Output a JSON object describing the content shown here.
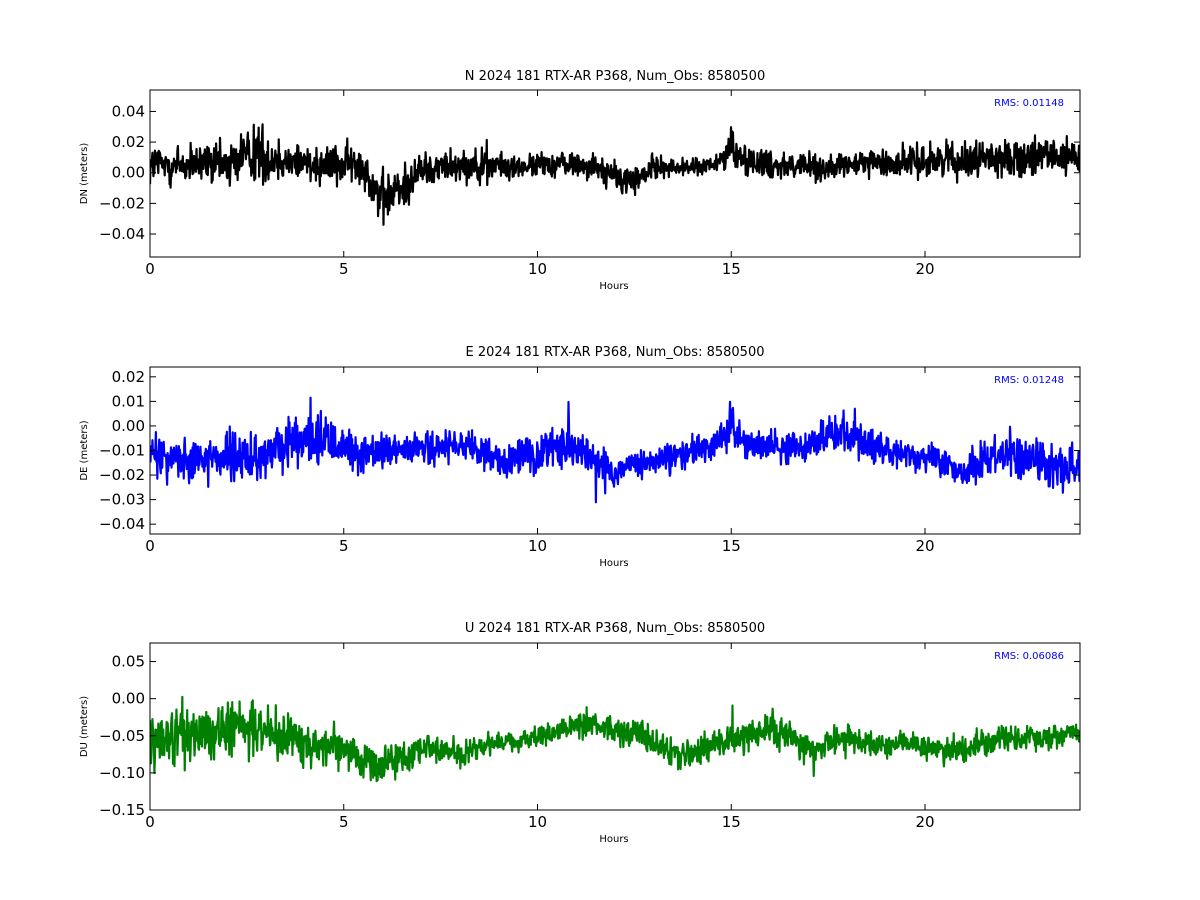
{
  "chart_data": [
    {
      "type": "line",
      "component": "N",
      "title": "N 2024 181 RTX-AR  P368, Num_Obs: 8580500",
      "xlabel": "Hours",
      "ylabel": "DN (meters)",
      "xlim": [
        0,
        24
      ],
      "ylim": [
        -0.055,
        0.054
      ],
      "xticks": [
        0,
        5,
        10,
        15,
        20
      ],
      "yticks": [
        0.04,
        0.02,
        0.0,
        -0.02,
        -0.04
      ],
      "ytick_labels": [
        "0.04",
        "0.02",
        "0.00",
        "−0.02",
        "−0.04"
      ],
      "grid": false,
      "color": "#000000",
      "rms_label": "RMS:  0.01148",
      "series": [
        {
          "x": [
            0,
            0.5,
            1,
            1.5,
            2,
            2.5,
            2.7,
            3,
            3.5,
            4,
            4.5,
            5,
            5.5,
            6,
            6.5,
            7,
            7.5,
            8,
            8.5,
            9,
            9.5,
            10,
            10.5,
            11,
            11.5,
            12,
            12.5,
            13,
            13.5,
            14,
            14.5,
            14.9,
            15,
            15.1,
            15.5,
            16,
            16.5,
            17,
            17.5,
            18,
            18.5,
            19,
            19.5,
            20,
            20.5,
            21,
            21.5,
            22,
            22.5,
            23,
            23.5,
            24
          ],
          "y": [
            0.005,
            0.006,
            0.004,
            0.006,
            0.005,
            0.012,
            0.015,
            0.009,
            0.008,
            0.007,
            0.006,
            0.006,
            0.004,
            -0.018,
            -0.01,
            0.002,
            0.004,
            0.006,
            0.005,
            0.004,
            0.003,
            0.005,
            0.006,
            0.006,
            0.004,
            -0.003,
            -0.006,
            0.004,
            0.003,
            0.004,
            0.004,
            0.012,
            0.02,
            0.012,
            0.008,
            0.006,
            0.005,
            0.004,
            0.003,
            0.004,
            0.007,
            0.006,
            0.007,
            0.008,
            0.009,
            0.008,
            0.01,
            0.009,
            0.01,
            0.009,
            0.01,
            0.01
          ],
          "noise": [
            0.015,
            0.016,
            0.014,
            0.015,
            0.016,
            0.02,
            0.025,
            0.017,
            0.015,
            0.014,
            0.014,
            0.014,
            0.014,
            0.02,
            0.016,
            0.012,
            0.011,
            0.011,
            0.012,
            0.01,
            0.008,
            0.008,
            0.009,
            0.009,
            0.009,
            0.011,
            0.011,
            0.008,
            0.006,
            0.006,
            0.007,
            0.01,
            0.016,
            0.012,
            0.01,
            0.011,
            0.01,
            0.01,
            0.009,
            0.008,
            0.009,
            0.01,
            0.011,
            0.012,
            0.012,
            0.012,
            0.012,
            0.012,
            0.013,
            0.013,
            0.013,
            0.013
          ]
        }
      ]
    },
    {
      "type": "line",
      "component": "E",
      "title": "E 2024 181 RTX-AR  P368, Num_Obs: 8580500",
      "xlabel": "Hours",
      "ylabel": "DE (meters)",
      "xlim": [
        0,
        24
      ],
      "ylim": [
        -0.044,
        0.024
      ],
      "xticks": [
        0,
        5,
        10,
        15,
        20
      ],
      "yticks": [
        0.02,
        0.01,
        0.0,
        -0.01,
        -0.02,
        -0.03,
        -0.04
      ],
      "ytick_labels": [
        "0.02",
        "0.01",
        "0.00",
        "−0.01",
        "−0.02",
        "−0.03",
        "−0.04"
      ],
      "grid": false,
      "color": "#0000ff",
      "rms_label": "RMS:  0.01248",
      "series": [
        {
          "x": [
            0,
            0.5,
            1,
            1.5,
            2,
            2.5,
            3,
            3.5,
            4,
            4.5,
            5,
            5.5,
            6,
            6.5,
            7,
            7.5,
            8,
            8.5,
            9,
            9.5,
            10,
            10.5,
            11,
            11.5,
            12,
            12.5,
            13,
            13.5,
            14,
            14.5,
            14.9,
            15,
            15.1,
            15.5,
            16,
            16.5,
            17,
            17.5,
            18,
            18.5,
            19,
            19.5,
            20,
            20.5,
            21,
            21.5,
            22,
            22.5,
            23,
            23.5,
            24
          ],
          "y": [
            -0.012,
            -0.013,
            -0.013,
            -0.012,
            -0.013,
            -0.014,
            -0.012,
            -0.008,
            -0.006,
            -0.006,
            -0.008,
            -0.012,
            -0.011,
            -0.01,
            -0.009,
            -0.009,
            -0.009,
            -0.01,
            -0.014,
            -0.013,
            -0.012,
            -0.008,
            -0.01,
            -0.014,
            -0.019,
            -0.016,
            -0.015,
            -0.013,
            -0.01,
            -0.008,
            -0.002,
            0.005,
            -0.003,
            -0.007,
            -0.008,
            -0.01,
            -0.008,
            -0.003,
            -0.004,
            -0.008,
            -0.01,
            -0.012,
            -0.013,
            -0.015,
            -0.02,
            -0.012,
            -0.01,
            -0.012,
            -0.015,
            -0.016,
            -0.017
          ],
          "noise": [
            0.011,
            0.01,
            0.01,
            0.01,
            0.011,
            0.011,
            0.01,
            0.01,
            0.01,
            0.01,
            0.01,
            0.009,
            0.008,
            0.007,
            0.007,
            0.007,
            0.007,
            0.007,
            0.008,
            0.008,
            0.008,
            0.009,
            0.009,
            0.007,
            0.006,
            0.006,
            0.006,
            0.007,
            0.007,
            0.007,
            0.008,
            0.012,
            0.008,
            0.007,
            0.007,
            0.007,
            0.007,
            0.009,
            0.009,
            0.008,
            0.007,
            0.006,
            0.006,
            0.006,
            0.006,
            0.009,
            0.009,
            0.009,
            0.009,
            0.01,
            0.011
          ]
        }
      ]
    },
    {
      "type": "line",
      "component": "U",
      "title": "U 2024 181 RTX-AR  P368, Num_Obs: 8580500",
      "xlabel": "Hours",
      "ylabel": "DU (meters)",
      "xlim": [
        0,
        24
      ],
      "ylim": [
        -0.15,
        0.075
      ],
      "xticks": [
        0,
        5,
        10,
        15,
        20
      ],
      "yticks": [
        0.05,
        0.0,
        -0.05,
        -0.1,
        -0.15
      ],
      "ytick_labels": [
        "0.05",
        "0.00",
        "−0.05",
        "−0.10",
        "−0.15"
      ],
      "grid": false,
      "color": "#008000",
      "rms_label": "RMS:  0.06086",
      "series": [
        {
          "x": [
            0,
            0.5,
            1,
            1.5,
            2,
            2.5,
            3,
            3.5,
            4,
            4.5,
            5,
            5.5,
            6,
            6.5,
            7,
            7.5,
            8,
            8.5,
            9,
            9.5,
            10,
            10.5,
            11,
            11.5,
            12,
            12.5,
            13,
            13.5,
            14,
            14.5,
            15,
            15.5,
            16,
            16.5,
            17,
            17.5,
            18,
            18.5,
            19,
            19.5,
            20,
            20.5,
            21,
            21.5,
            22,
            22.5,
            23,
            23.5,
            24
          ],
          "y": [
            -0.05,
            -0.05,
            -0.045,
            -0.05,
            -0.045,
            -0.04,
            -0.045,
            -0.05,
            -0.06,
            -0.065,
            -0.07,
            -0.08,
            -0.09,
            -0.08,
            -0.065,
            -0.07,
            -0.075,
            -0.065,
            -0.06,
            -0.06,
            -0.05,
            -0.045,
            -0.035,
            -0.035,
            -0.045,
            -0.04,
            -0.06,
            -0.075,
            -0.075,
            -0.06,
            -0.055,
            -0.05,
            -0.04,
            -0.05,
            -0.07,
            -0.06,
            -0.055,
            -0.06,
            -0.065,
            -0.06,
            -0.065,
            -0.07,
            -0.07,
            -0.06,
            -0.05,
            -0.055,
            -0.055,
            -0.05,
            -0.045
          ],
          "noise": [
            0.035,
            0.038,
            0.045,
            0.045,
            0.04,
            0.042,
            0.04,
            0.035,
            0.03,
            0.025,
            0.025,
            0.025,
            0.025,
            0.022,
            0.02,
            0.018,
            0.018,
            0.016,
            0.015,
            0.015,
            0.015,
            0.017,
            0.018,
            0.018,
            0.018,
            0.02,
            0.022,
            0.025,
            0.022,
            0.02,
            0.02,
            0.022,
            0.025,
            0.022,
            0.022,
            0.02,
            0.018,
            0.018,
            0.018,
            0.018,
            0.018,
            0.018,
            0.02,
            0.02,
            0.02,
            0.02,
            0.022,
            0.022,
            0.02
          ]
        }
      ]
    }
  ]
}
